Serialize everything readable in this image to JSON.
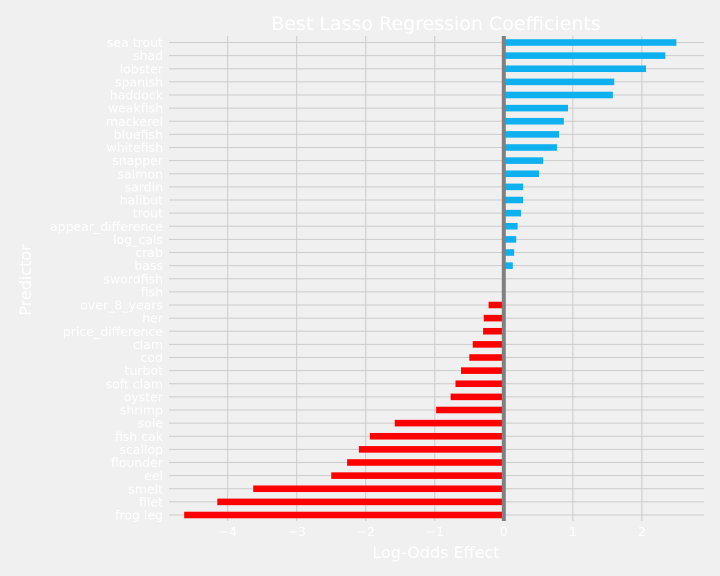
{
  "chart_data": {
    "type": "bar",
    "orientation": "horizontal",
    "title": "Best Lasso Regression Coefficients",
    "xlabel": "Log-Odds Effect",
    "ylabel": "Predictor",
    "xlim": [
      -4.85,
      2.9
    ],
    "xticks": [
      -4,
      -3,
      -2,
      -1,
      0,
      1,
      2
    ],
    "xtick_labels": [
      "−4",
      "−3",
      "−2",
      "−1",
      "0",
      "1",
      "2"
    ],
    "grid": true,
    "positive_color": "#0fb0f0",
    "negative_color": "#ff0000",
    "zero_line_color": "#808080",
    "categories": [
      "sea trout",
      "shad",
      "lobster",
      "spanish",
      "haddock",
      "weakfish",
      "mackerel",
      "bluefish",
      "whitefish",
      "snapper",
      "salmon",
      "sardin",
      "halibut",
      "trout",
      "appear_difference",
      "log_cals",
      "crab",
      "bass",
      "swordfish",
      "fish",
      "over_8_years",
      "her",
      "price_difference",
      "clam",
      "cod",
      "turbot",
      "soft clam",
      "oyster",
      "shrimp",
      "sole",
      "fish cak",
      "scallop",
      "flounder",
      "eel",
      "smelt",
      "filet",
      "frog leg"
    ],
    "values": [
      2.5,
      2.34,
      2.06,
      1.6,
      1.58,
      0.93,
      0.87,
      0.8,
      0.77,
      0.57,
      0.51,
      0.28,
      0.28,
      0.25,
      0.2,
      0.18,
      0.15,
      0.13,
      0.0,
      0.0,
      -0.22,
      -0.29,
      -0.3,
      -0.45,
      -0.5,
      -0.62,
      -0.7,
      -0.77,
      -0.98,
      -1.58,
      -1.94,
      -2.1,
      -2.27,
      -2.5,
      -3.63,
      -4.15,
      -4.63
    ]
  }
}
